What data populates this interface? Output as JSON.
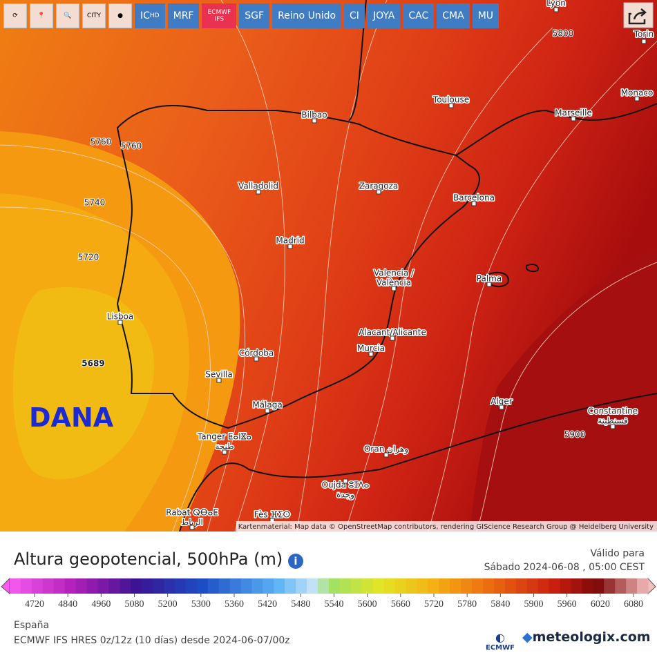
{
  "toolbar": {
    "icon_buttons": [
      "CITY"
    ],
    "buttons": [
      {
        "label": "IC",
        "sub": "HD"
      },
      {
        "label": "MRF"
      },
      {
        "label": "ECMWF",
        "sub": "IFS"
      },
      {
        "label": "SGF"
      },
      {
        "label": "Reino Unido"
      },
      {
        "label": "CI"
      },
      {
        "label": "JOYA"
      },
      {
        "label": "CAC"
      },
      {
        "label": "CMA"
      },
      {
        "label": "MU"
      }
    ]
  },
  "map": {
    "cities": [
      [
        "Lyon"
      ],
      [
        "Torin"
      ],
      [
        "Toulouse"
      ],
      [
        "Monaco"
      ],
      [
        "Marseille"
      ],
      [
        "Bilbao"
      ],
      [
        "Valladolid"
      ],
      [
        "Zaragoza"
      ],
      [
        "Barcelona"
      ],
      [
        "Madrid"
      ],
      [
        "Valencia /",
        "València"
      ],
      [
        "Palma"
      ],
      [
        "Lisboa"
      ],
      [
        "Alacant/Alicante"
      ],
      [
        "Murcia"
      ],
      [
        "Córdoba"
      ],
      [
        "Sevilla"
      ],
      [
        "Málaga"
      ],
      [
        "Alger"
      ],
      [
        "Constantine",
        "قسنطينة"
      ],
      [
        "Tanger ⵟⴰⵏⴵⴰ",
        "طنجة"
      ],
      [
        "Oran وهران"
      ],
      [
        "Oujda ⵓⵊⴷⴰ",
        "وجدة"
      ],
      [
        "Rabat ⵕⴱⴰⵟ",
        "الرباط"
      ],
      [
        "Fès ⴼⵉⵙ"
      ]
    ],
    "contour_labels": [
      5760,
      5760,
      5740,
      5720,
      5689,
      5800,
      5900
    ],
    "annotation": "DANA",
    "attribution": "Kartenmaterial: Map data © OpenStreetMap contributors, rendering GIScience Research Group @ Heidelberg University"
  },
  "footer": {
    "title": "Altura geopotencial, 500hPa (m)",
    "valid_label": "Válido para",
    "valid_time": "Sábado 2024-06-08 , 05:00 CEST",
    "scale": [
      4720,
      4840,
      4960,
      5080,
      5200,
      5300,
      5360,
      5420,
      5480,
      5540,
      5600,
      5660,
      5720,
      5780,
      5840,
      5900,
      5960,
      6020,
      6080
    ],
    "region": "España",
    "model": "ECMWF IFS HRES 0z/12z (10 días) desde 2024-06-07/00z",
    "logo_ecmwf": "ECMWF",
    "logo_site": "meteologix.com"
  }
}
